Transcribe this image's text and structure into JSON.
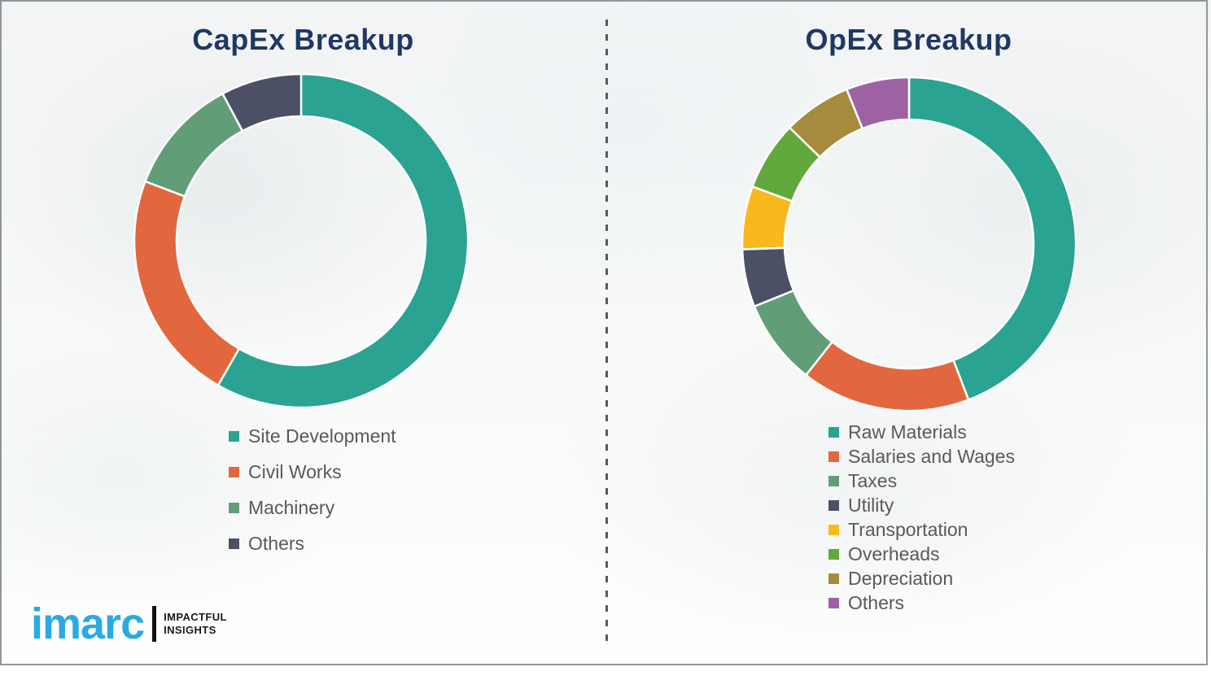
{
  "titles": {
    "left": "CapEx Breakup",
    "right": "OpEx Breakup"
  },
  "logo": {
    "brand": "imarc",
    "tagline_line1": "IMPACTFUL",
    "tagline_line2": "INSIGHTS"
  },
  "style": {
    "title_color": "#1f3864",
    "legend_text_color": "#595959",
    "divider_color": "#57595c",
    "logo_blue": "#29abe2"
  },
  "chart_data": [
    {
      "type": "pie",
      "variant": "donut",
      "title": "CapEx Breakup",
      "labels": [
        "Site Development",
        "Civil Works",
        "Machinery",
        "Others"
      ],
      "values": [
        58.3,
        22.5,
        11.4,
        7.8
      ],
      "colors": [
        "#2aa392",
        "#e2673f",
        "#619e78",
        "#4b5066"
      ],
      "start_angle_deg": 0,
      "direction": "clockwise",
      "legend_position": "below-left",
      "note": "values are percent shares estimated from arc angles; no numeric labels shown in image"
    },
    {
      "type": "pie",
      "variant": "donut",
      "title": "OpEx Breakup",
      "labels": [
        "Raw Materials",
        "Salaries and Wages",
        "Taxes",
        "Utility",
        "Transportation",
        "Overheads",
        "Depreciation",
        "Others"
      ],
      "values": [
        44.2,
        16.4,
        8.3,
        5.6,
        6.1,
        6.7,
        6.6,
        6.1
      ],
      "colors": [
        "#2aa392",
        "#e2673f",
        "#619e78",
        "#4b5066",
        "#f8b81e",
        "#62a83c",
        "#a68a3e",
        "#9d62a4"
      ],
      "start_angle_deg": 0,
      "direction": "clockwise",
      "legend_position": "below-left",
      "note": "values are percent shares estimated from arc angles; no numeric labels shown in image"
    }
  ]
}
